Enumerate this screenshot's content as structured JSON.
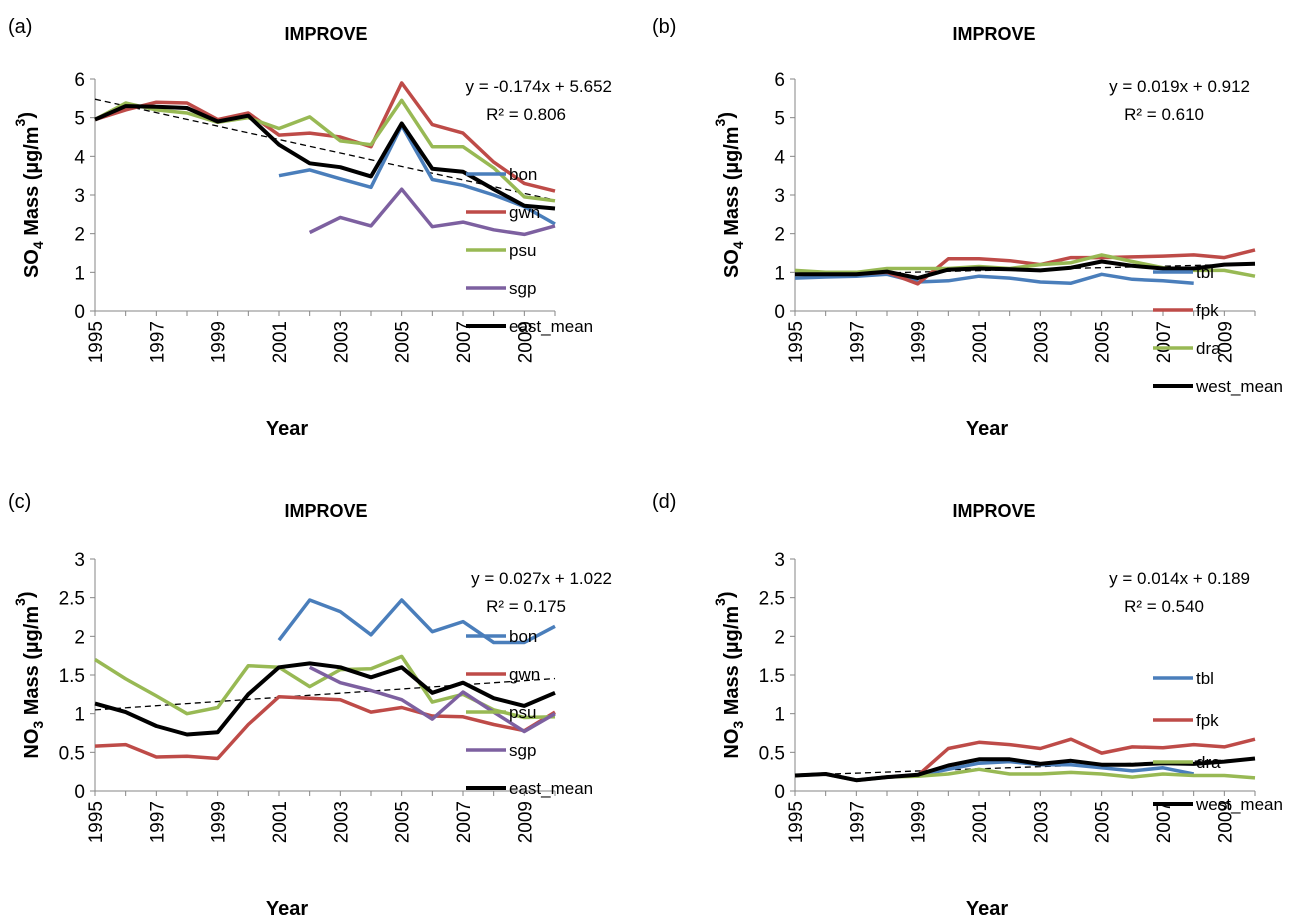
{
  "chart_data": [
    {
      "panel_label": "(a)",
      "type": "line",
      "title": "IMPROVE",
      "ylabel_prefix": "SO",
      "ylabel_sub": "4",
      "ylabel_suffix": " Mass (µg/m",
      "ylabel_sup": "3",
      "ylabel_close": ")",
      "xlabel": "Year",
      "ylim": [
        0,
        6
      ],
      "yticks": [
        "0",
        "1",
        "2",
        "3",
        "4",
        "5",
        "6"
      ],
      "xlim": [
        1995,
        2010
      ],
      "xticks": [
        "1995",
        "1997",
        "1999",
        "2001",
        "2003",
        "2005",
        "2007",
        "2009"
      ],
      "equation": "y = -0.174x + 5.652",
      "r2": "R² = 0.806",
      "trend": [
        5.478,
        2.868
      ],
      "legend_position": "right",
      "series": [
        {
          "name": "bon",
          "color": "#4a7ebb",
          "x": [
            2001,
            2002,
            2003,
            2004,
            2005,
            2006,
            2007,
            2008,
            2009,
            2010
          ],
          "values": [
            3.5,
            3.65,
            3.42,
            3.2,
            4.8,
            3.4,
            3.25,
            3.0,
            2.7,
            2.25
          ]
        },
        {
          "name": "gwn",
          "color": "#be4b48",
          "x": [
            1995,
            1996,
            1997,
            1998,
            1999,
            2000,
            2001,
            2002,
            2003,
            2004,
            2005,
            2006,
            2007,
            2008,
            2009,
            2010
          ],
          "values": [
            4.95,
            5.2,
            5.4,
            5.38,
            4.95,
            5.12,
            4.55,
            4.6,
            4.5,
            4.25,
            5.9,
            4.82,
            4.6,
            3.85,
            3.3,
            3.1
          ]
        },
        {
          "name": "psu",
          "color": "#98b954",
          "x": [
            1995,
            1996,
            1997,
            1998,
            1999,
            2000,
            2001,
            2002,
            2003,
            2004,
            2005,
            2006,
            2007,
            2008,
            2009,
            2010
          ],
          "values": [
            4.95,
            5.38,
            5.2,
            5.12,
            4.88,
            5.0,
            4.72,
            5.02,
            4.4,
            4.3,
            5.45,
            4.25,
            4.25,
            3.7,
            2.95,
            2.85
          ]
        },
        {
          "name": "sgp",
          "color": "#7d60a0",
          "x": [
            2002,
            2003,
            2004,
            2005,
            2006,
            2007,
            2008,
            2009,
            2010
          ],
          "values": [
            2.03,
            2.42,
            2.2,
            3.15,
            2.18,
            2.3,
            2.1,
            1.98,
            2.2
          ]
        },
        {
          "name": "east_mean",
          "color": "#000000",
          "x": [
            1995,
            1996,
            1997,
            1998,
            1999,
            2000,
            2001,
            2002,
            2003,
            2004,
            2005,
            2006,
            2007,
            2008,
            2009,
            2010
          ],
          "values": [
            4.95,
            5.3,
            5.28,
            5.25,
            4.9,
            5.05,
            4.3,
            3.82,
            3.72,
            3.48,
            4.85,
            3.68,
            3.6,
            3.15,
            2.72,
            2.65
          ]
        }
      ]
    },
    {
      "panel_label": "(b)",
      "type": "line",
      "title": "IMPROVE",
      "ylabel_prefix": "SO",
      "ylabel_sub": "4",
      "ylabel_suffix": " Mass (µg/m",
      "ylabel_sup": "3",
      "ylabel_close": ")",
      "xlabel": "Year",
      "ylim": [
        0,
        6
      ],
      "yticks": [
        "0",
        "1",
        "2",
        "3",
        "4",
        "5",
        "6"
      ],
      "xlim": [
        1995,
        2010
      ],
      "xticks": [
        "1995",
        "1997",
        "1999",
        "2001",
        "2003",
        "2005",
        "2007",
        "2009"
      ],
      "equation": "y = 0.019x + 0.912",
      "r2": "R² = 0.610",
      "trend": [
        0.931,
        1.216
      ],
      "legend_position": "right",
      "series": [
        {
          "name": "tbl",
          "color": "#4a7ebb",
          "x": [
            1995,
            1996,
            1997,
            1998,
            1999,
            2000,
            2001,
            2002,
            2003,
            2004,
            2005,
            2006,
            2007,
            2008
          ],
          "values": [
            0.85,
            0.88,
            0.9,
            0.95,
            0.75,
            0.78,
            0.9,
            0.85,
            0.75,
            0.72,
            0.95,
            0.82,
            0.78,
            0.72
          ]
        },
        {
          "name": "fpk",
          "color": "#be4b48",
          "x": [
            1995,
            1996,
            1997,
            1998,
            1999,
            2000,
            2001,
            2002,
            2003,
            2004,
            2005,
            2006,
            2007,
            2008,
            2009,
            2010
          ],
          "values": [
            0.95,
            0.95,
            0.95,
            1.0,
            0.7,
            1.35,
            1.35,
            1.3,
            1.2,
            1.38,
            1.38,
            1.4,
            1.42,
            1.45,
            1.38,
            1.58
          ]
        },
        {
          "name": "dra",
          "color": "#98b954",
          "x": [
            1995,
            1996,
            1997,
            1998,
            1999,
            2000,
            2001,
            2002,
            2003,
            2004,
            2005,
            2006,
            2007,
            2008,
            2009,
            2010
          ],
          "values": [
            1.05,
            1.0,
            1.0,
            1.1,
            1.1,
            1.1,
            1.15,
            1.1,
            1.2,
            1.25,
            1.45,
            1.28,
            1.12,
            1.05,
            1.05,
            0.9
          ]
        },
        {
          "name": "west_mean",
          "color": "#000000",
          "x": [
            1995,
            1996,
            1997,
            1998,
            1999,
            2000,
            2001,
            2002,
            2003,
            2004,
            2005,
            2006,
            2007,
            2008,
            2009,
            2010
          ],
          "values": [
            0.95,
            0.95,
            0.95,
            1.02,
            0.85,
            1.07,
            1.1,
            1.08,
            1.05,
            1.12,
            1.28,
            1.17,
            1.1,
            1.1,
            1.2,
            1.22
          ]
        }
      ]
    },
    {
      "panel_label": "(c)",
      "type": "line",
      "title": "IMPROVE",
      "ylabel_prefix": "NO",
      "ylabel_sub": "3",
      "ylabel_suffix": " Mass (µg/m",
      "ylabel_sup": "3",
      "ylabel_close": ")",
      "xlabel": "Year",
      "ylim": [
        0,
        3
      ],
      "yticks": [
        "0",
        "0.5",
        "1",
        "1.5",
        "2",
        "2.5",
        "3"
      ],
      "xlim": [
        1995,
        2010
      ],
      "xticks": [
        "1995",
        "1997",
        "1999",
        "2001",
        "2003",
        "2005",
        "2007",
        "2009"
      ],
      "equation": "y = 0.027x + 1.022",
      "r2": "R² = 0.175",
      "trend": [
        1.049,
        1.454
      ],
      "legend_position": "right",
      "series": [
        {
          "name": "bon",
          "color": "#4a7ebb",
          "x": [
            2001,
            2002,
            2003,
            2004,
            2005,
            2006,
            2007,
            2008,
            2009,
            2010
          ],
          "values": [
            1.95,
            2.47,
            2.32,
            2.02,
            2.47,
            2.06,
            2.19,
            1.92,
            1.92,
            2.13
          ]
        },
        {
          "name": "gwn",
          "color": "#be4b48",
          "x": [
            1995,
            1996,
            1997,
            1998,
            1999,
            2000,
            2001,
            2002,
            2003,
            2004,
            2005,
            2006,
            2007,
            2008,
            2009,
            2010
          ],
          "values": [
            0.58,
            0.6,
            0.44,
            0.45,
            0.42,
            0.86,
            1.22,
            1.2,
            1.18,
            1.02,
            1.08,
            0.97,
            0.96,
            0.86,
            0.78,
            1.02
          ]
        },
        {
          "name": "psu",
          "color": "#98b954",
          "x": [
            1995,
            1996,
            1997,
            1998,
            1999,
            2000,
            2001,
            2002,
            2003,
            2004,
            2005,
            2006,
            2007,
            2008,
            2009,
            2010
          ],
          "values": [
            1.7,
            1.45,
            1.23,
            1.0,
            1.08,
            1.62,
            1.6,
            1.35,
            1.57,
            1.58,
            1.74,
            1.15,
            1.25,
            1.05,
            0.95,
            0.96
          ]
        },
        {
          "name": "sgp",
          "color": "#7d60a0",
          "x": [
            2002,
            2003,
            2004,
            2005,
            2006,
            2007,
            2008,
            2009,
            2010
          ],
          "values": [
            1.6,
            1.4,
            1.3,
            1.18,
            0.93,
            1.28,
            1.02,
            0.77,
            1.0
          ]
        },
        {
          "name": "east_mean",
          "color": "#000000",
          "x": [
            1995,
            1996,
            1997,
            1998,
            1999,
            2000,
            2001,
            2002,
            2003,
            2004,
            2005,
            2006,
            2007,
            2008,
            2009,
            2010
          ],
          "values": [
            1.13,
            1.02,
            0.84,
            0.73,
            0.76,
            1.25,
            1.6,
            1.65,
            1.6,
            1.47,
            1.6,
            1.27,
            1.4,
            1.2,
            1.1,
            1.27
          ]
        }
      ]
    },
    {
      "panel_label": "(d)",
      "type": "line",
      "title": "IMPROVE",
      "ylabel_prefix": "NO",
      "ylabel_sub": "3",
      "ylabel_suffix": " Mass (µg/m",
      "ylabel_sup": "3",
      "ylabel_close": ")",
      "xlabel": "Year",
      "ylim": [
        0,
        3
      ],
      "yticks": [
        "0",
        "0.5",
        "1",
        "1.5",
        "2",
        "2.5",
        "3"
      ],
      "xlim": [
        1995,
        2010
      ],
      "xticks": [
        "1995",
        "1997",
        "1999",
        "2001",
        "2003",
        "2005",
        "2007",
        "2009"
      ],
      "equation": "y = 0.014x + 0.189",
      "r2": "R² = 0.540",
      "trend": [
        0.203,
        0.413
      ],
      "legend_position": "right",
      "series": [
        {
          "name": "tbl",
          "color": "#4a7ebb",
          "x": [
            1995,
            1996,
            1997,
            1998,
            1999,
            2000,
            2001,
            2002,
            2003,
            2004,
            2005,
            2006,
            2007,
            2008
          ],
          "values": [
            0.2,
            0.22,
            0.14,
            0.18,
            0.2,
            0.28,
            0.36,
            0.38,
            0.34,
            0.34,
            0.3,
            0.26,
            0.3,
            0.22
          ]
        },
        {
          "name": "fpk",
          "color": "#be4b48",
          "x": [
            1995,
            1996,
            1997,
            1998,
            1999,
            2000,
            2001,
            2002,
            2003,
            2004,
            2005,
            2006,
            2007,
            2008,
            2009,
            2010
          ],
          "values": [
            0.2,
            0.22,
            0.14,
            0.18,
            0.2,
            0.55,
            0.63,
            0.6,
            0.55,
            0.67,
            0.49,
            0.57,
            0.56,
            0.6,
            0.57,
            0.67
          ]
        },
        {
          "name": "dra",
          "color": "#98b954",
          "x": [
            1995,
            1996,
            1997,
            1998,
            1999,
            2000,
            2001,
            2002,
            2003,
            2004,
            2005,
            2006,
            2007,
            2008,
            2009,
            2010
          ],
          "values": [
            0.2,
            0.22,
            0.14,
            0.18,
            0.19,
            0.22,
            0.28,
            0.22,
            0.22,
            0.24,
            0.22,
            0.18,
            0.22,
            0.2,
            0.2,
            0.17
          ]
        },
        {
          "name": "west_mean",
          "color": "#000000",
          "x": [
            1995,
            1996,
            1997,
            1998,
            1999,
            2000,
            2001,
            2002,
            2003,
            2004,
            2005,
            2006,
            2007,
            2008,
            2009,
            2010
          ],
          "values": [
            0.2,
            0.22,
            0.14,
            0.18,
            0.21,
            0.33,
            0.41,
            0.41,
            0.35,
            0.39,
            0.34,
            0.34,
            0.36,
            0.35,
            0.38,
            0.42
          ]
        }
      ]
    }
  ]
}
